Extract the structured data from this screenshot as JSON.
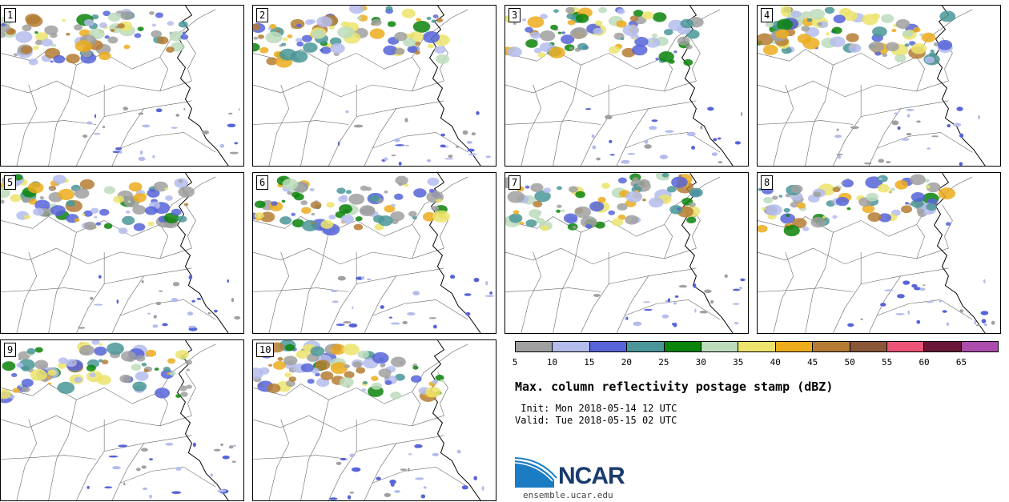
{
  "panels": [
    {
      "label": "1"
    },
    {
      "label": "2"
    },
    {
      "label": "3"
    },
    {
      "label": "4"
    },
    {
      "label": "5"
    },
    {
      "label": "6"
    },
    {
      "label": "7"
    },
    {
      "label": "8"
    },
    {
      "label": "9"
    },
    {
      "label": "10"
    }
  ],
  "colorbar": {
    "colors": [
      "#a0a0a0",
      "#b4bcec",
      "#5664d8",
      "#4a9698",
      "#0a840a",
      "#bcdcbc",
      "#ece46c",
      "#ecac1c",
      "#b47c34",
      "#8a5838",
      "#ec5478",
      "#6a1638",
      "#ac4cac"
    ],
    "ticks": [
      "5",
      "10",
      "15",
      "20",
      "25",
      "30",
      "35",
      "40",
      "45",
      "50",
      "55",
      "60",
      "65"
    ]
  },
  "title": "Max. column reflectivity postage stamp (dBZ)",
  "init": " Init: Mon 2018-05-14 12 UTC",
  "valid": "Valid: Tue 2018-05-15 02 UTC",
  "logo": {
    "text": "NCAR",
    "url_text": "ensemble.ucar.edu",
    "color": "#1a3b6e",
    "accent": "#1b7cc4"
  }
}
